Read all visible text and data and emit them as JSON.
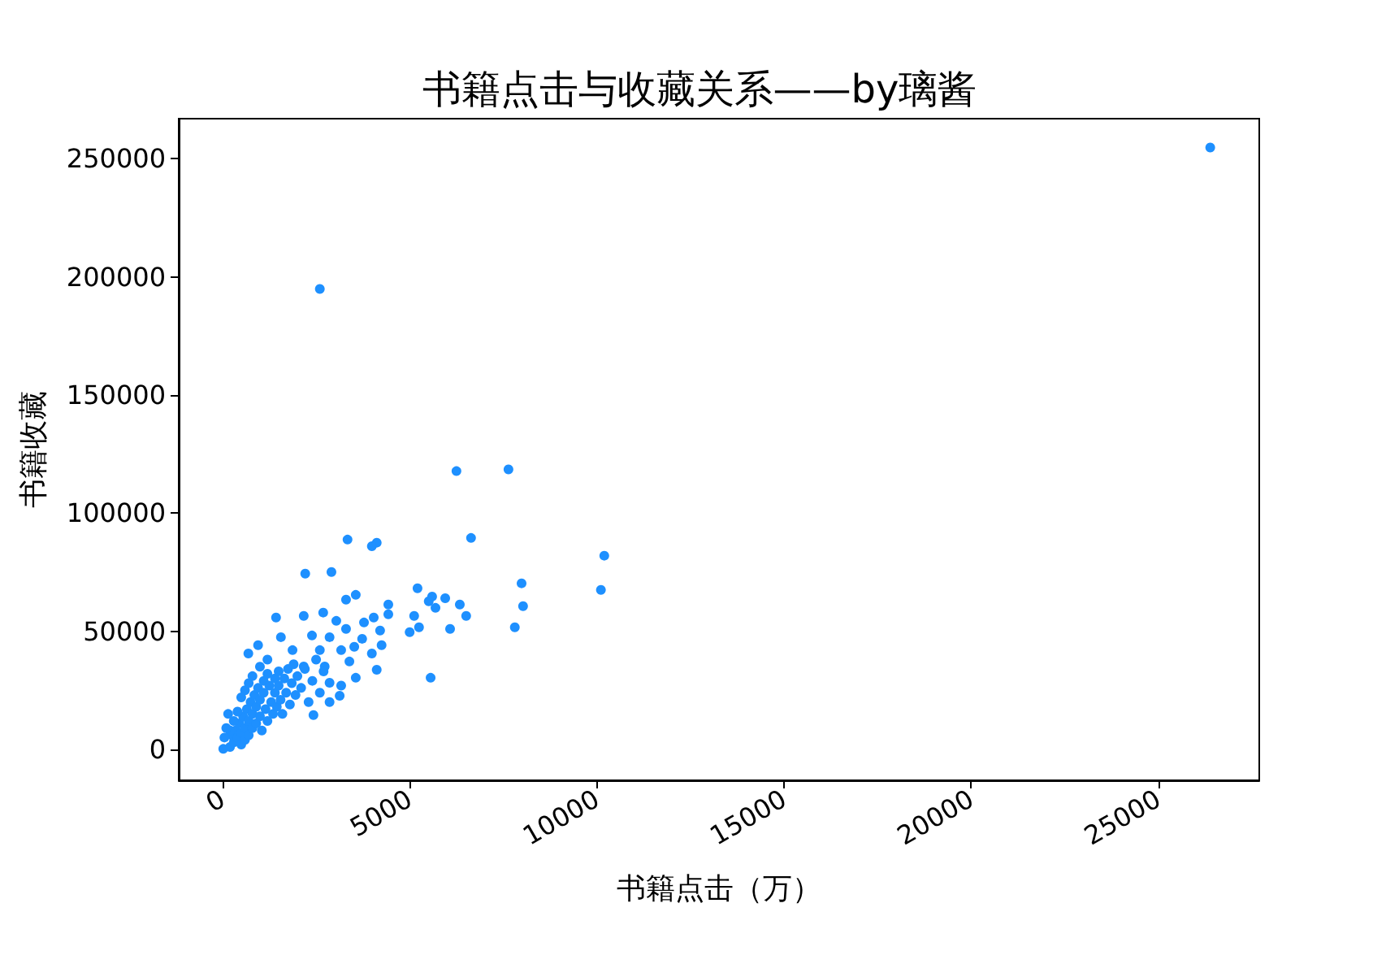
{
  "chart_data": {
    "type": "scatter",
    "title": "书籍点击与收藏关系——by璃酱",
    "xlabel": "书籍点击（万）",
    "ylabel": "书籍收藏",
    "color": "#1e90ff",
    "marker": "circle",
    "grid": false,
    "xlim": [
      -1170,
      27700
    ],
    "xticks": [
      0,
      5000,
      10000,
      15000,
      20000,
      25000
    ],
    "ylim": [
      -13100,
      267000
    ],
    "yticks": [
      0,
      50000,
      100000,
      150000,
      200000,
      250000
    ],
    "x": [
      26390,
      2600,
      6250,
      7640,
      6640,
      3340,
      4120,
      3990,
      10200,
      10110,
      2210,
      2910,
      7990,
      8030,
      7810,
      5560,
      5210,
      6340,
      6510,
      5950,
      5600,
      5510,
      5690,
      5120,
      5250,
      5000,
      6080,
      4430,
      4430,
      3560,
      3300,
      2690,
      2170,
      3040,
      3780,
      4040,
      4210,
      1430,
      4250,
      3990,
      4120,
      3560,
      3130,
      2430,
      2860,
      3170,
      3520,
      690,
      950,
      1560,
      2390,
      2860,
      3300,
      1870,
      2600,
      3170,
      3730,
      3390,
      2730,
      2170,
      2860,
      200,
      250,
      300,
      350,
      400,
      450,
      500,
      500,
      550,
      600,
      600,
      650,
      700,
      700,
      750,
      800,
      800,
      850,
      900,
      900,
      950,
      1000,
      1000,
      1050,
      1100,
      1100,
      1150,
      1200,
      1200,
      1250,
      1300,
      1350,
      1400,
      1400,
      1450,
      1500,
      1500,
      1550,
      1600,
      1650,
      1700,
      1750,
      1800,
      1850,
      1900,
      1950,
      2000,
      2100,
      2200,
      2300,
      2400,
      2500,
      2600,
      2700,
      300,
      200,
      400,
      500,
      600,
      700,
      800,
      1000,
      1200,
      150,
      100,
      50,
      20
    ],
    "values": [
      254800,
      194900,
      117800,
      118500,
      89500,
      88800,
      87500,
      86000,
      82000,
      67500,
      74400,
      75100,
      70300,
      60600,
      51700,
      30300,
      68200,
      61300,
      56500,
      64000,
      64700,
      62700,
      59900,
      56500,
      51700,
      49600,
      51000,
      61300,
      57200,
      65400,
      63400,
      57900,
      56500,
      54400,
      53700,
      55800,
      50300,
      55800,
      44100,
      40600,
      33700,
      30300,
      22700,
      14500,
      20000,
      27000,
      43400,
      40600,
      44100,
      47500,
      48200,
      47500,
      51000,
      42000,
      42000,
      42000,
      46800,
      37200,
      35100,
      35100,
      28200,
      1000,
      6000,
      3000,
      8000,
      5000,
      11000,
      2000,
      7000,
      14000,
      9000,
      4000,
      17000,
      12000,
      6000,
      20000,
      15000,
      9000,
      23000,
      18000,
      11000,
      26000,
      21000,
      14000,
      8000,
      29000,
      24000,
      17000,
      12000,
      32000,
      27000,
      20000,
      15000,
      30000,
      24000,
      18000,
      33000,
      27000,
      21000,
      15000,
      30000,
      24000,
      34000,
      19000,
      28000,
      36000,
      23000,
      31000,
      26000,
      34000,
      20000,
      29000,
      38000,
      24000,
      33000,
      12000,
      8000,
      16000,
      22000,
      25000,
      28000,
      31000,
      35000,
      38000,
      15000,
      9000,
      5000,
      200
    ]
  }
}
